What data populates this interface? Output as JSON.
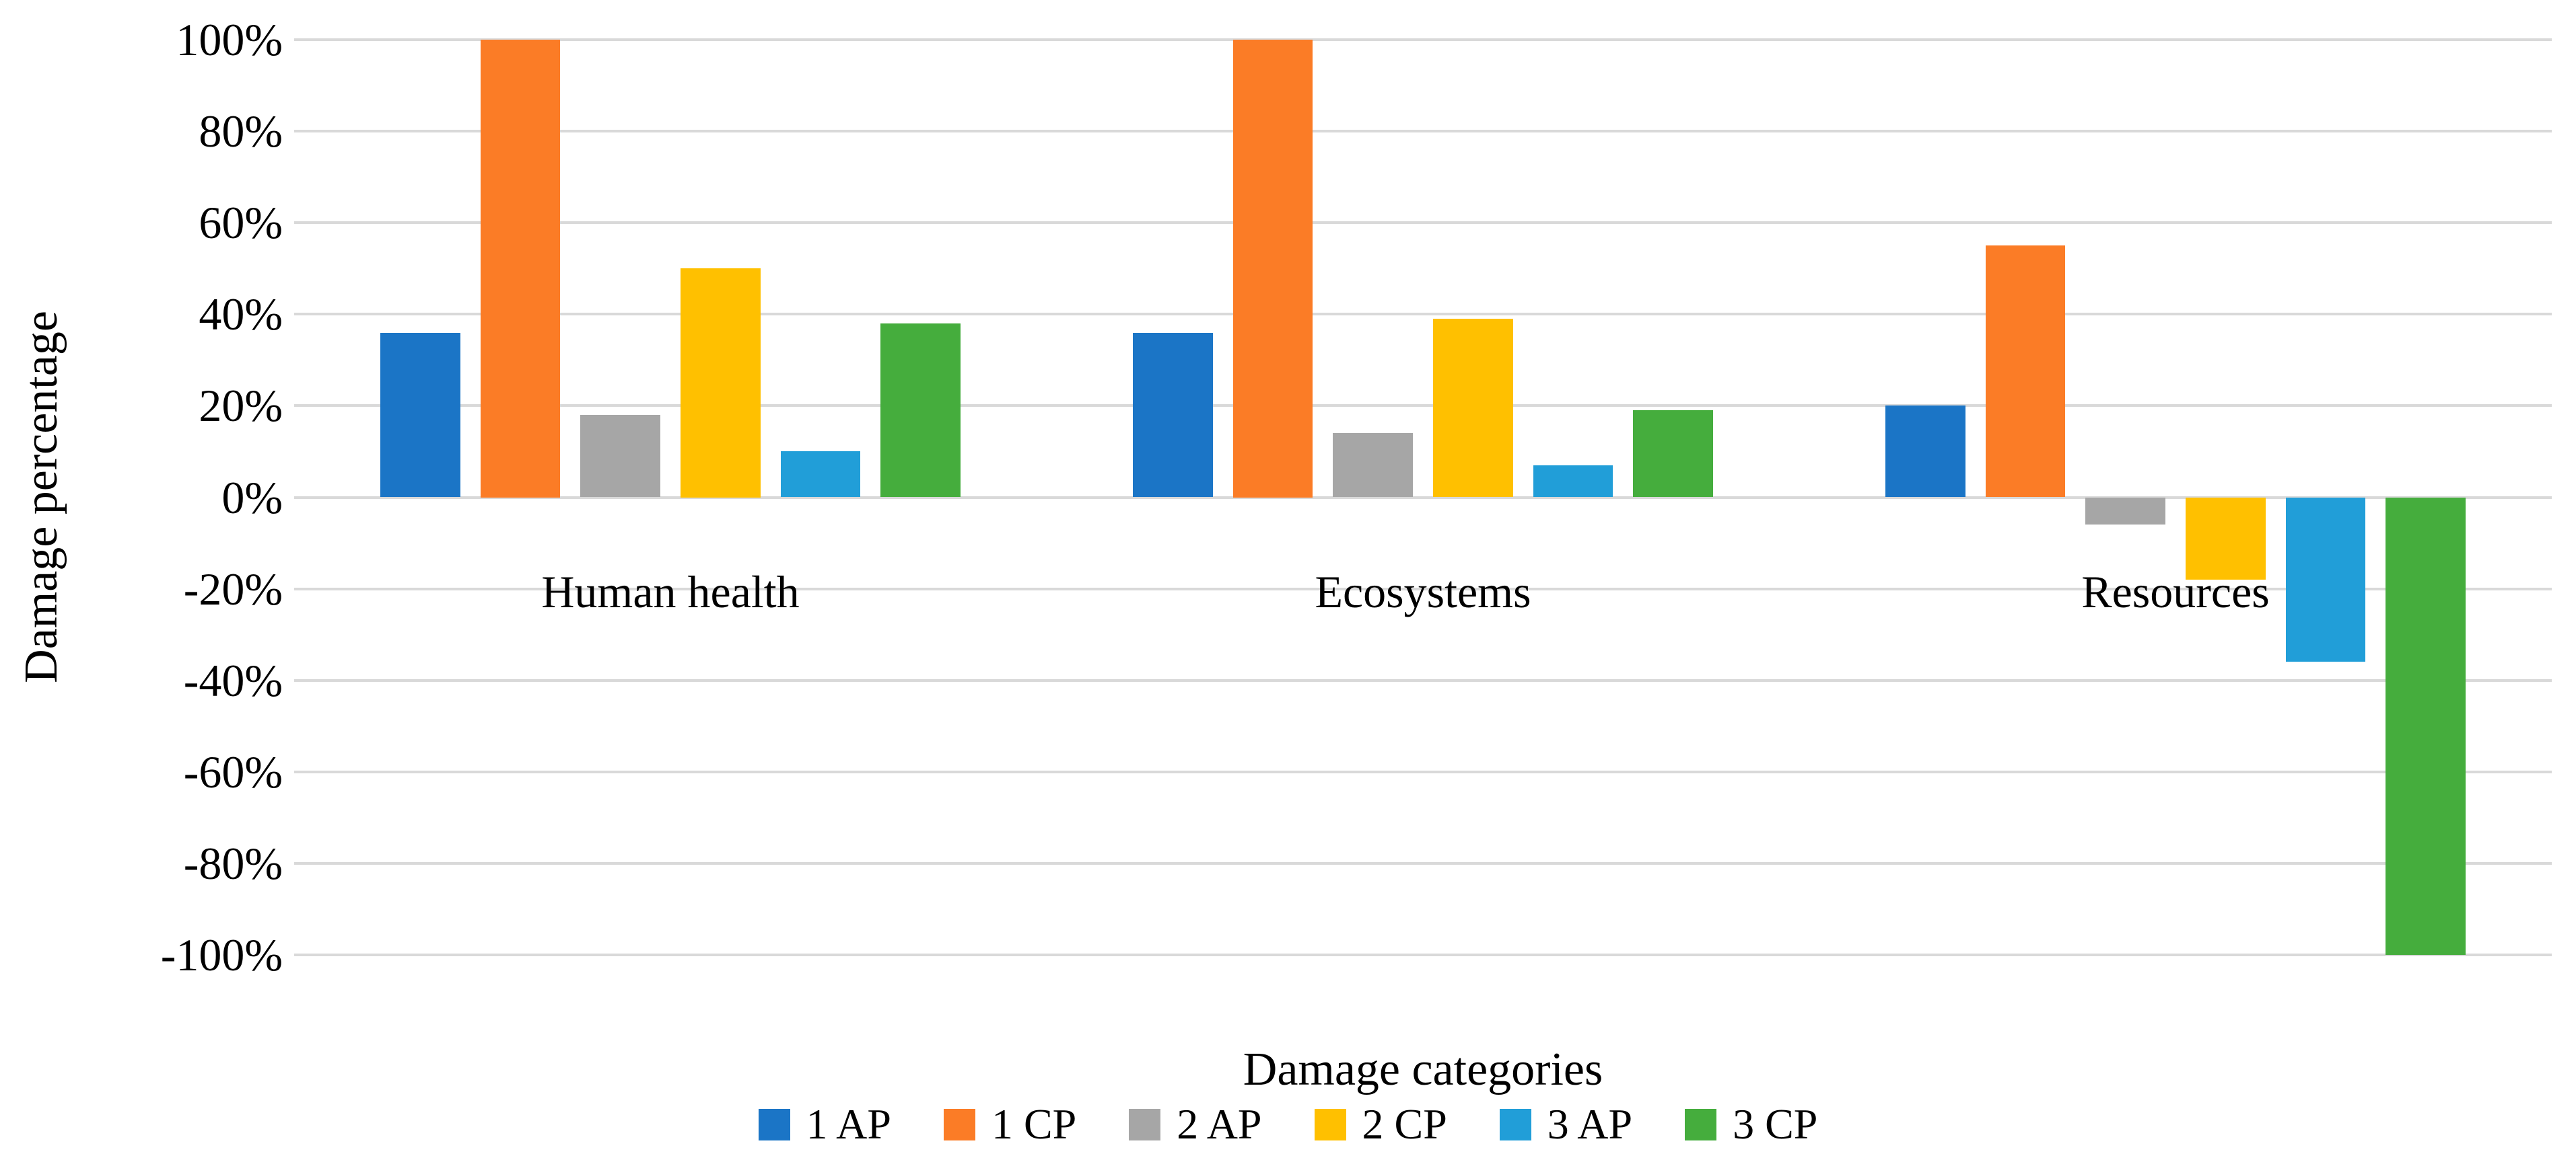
{
  "figure": {
    "background_color": "#FFFFFF",
    "text_color": "#000000",
    "gridline_color": "#D9D9D9",
    "y_axis_title": "Damage percentage",
    "x_axis_title": "Damage categories",
    "y_tick_labels": [
      "100%",
      "80%",
      "60%",
      "40%",
      "20%",
      "0%",
      "-20%",
      "-40%",
      "-60%",
      "-80%",
      "-100%"
    ]
  },
  "chart_data": {
    "type": "bar",
    "title": "",
    "xlabel": "Damage categories",
    "ylabel": "Damage percentage",
    "unit": "percent",
    "categories": [
      "Human health",
      "Ecosystems",
      "Resources"
    ],
    "series": [
      {
        "name": "1 AP",
        "color": "#1B75C6",
        "values": [
          36,
          36,
          20
        ]
      },
      {
        "name": "1 CP",
        "color": "#FB7C26",
        "values": [
          100,
          100,
          55
        ]
      },
      {
        "name": "2 AP",
        "color": "#A6A6A6",
        "values": [
          18,
          14,
          -6
        ]
      },
      {
        "name": "2 CP",
        "color": "#FFC000",
        "values": [
          50,
          39,
          -18
        ]
      },
      {
        "name": "3 AP",
        "color": "#219ED8",
        "values": [
          10,
          7,
          -36
        ]
      },
      {
        "name": "3 CP",
        "color": "#45AD3D",
        "values": [
          38,
          19,
          -100
        ]
      }
    ],
    "ylim": [
      -100,
      100
    ],
    "y_tick_step": 20,
    "grid": "horizontal",
    "legend_position": "bottom",
    "legend_entries": [
      "1 AP",
      "1 CP",
      "2 AP",
      "2 CP",
      "3 AP",
      "3 CP"
    ]
  }
}
